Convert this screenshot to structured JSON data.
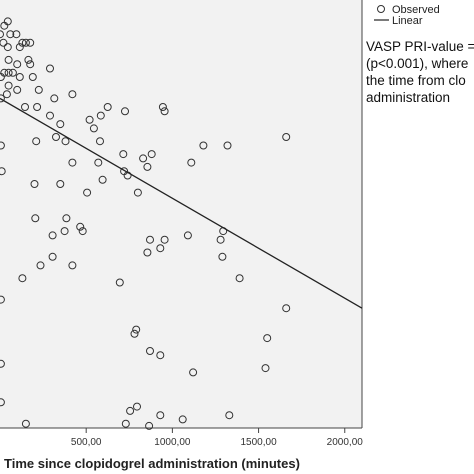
{
  "chart_data": {
    "type": "scatter",
    "xlabel": "Time since clopidogrel administration (minutes)",
    "ylabel": "",
    "xlim": [
      0,
      2100
    ],
    "ylim": [
      0,
      100
    ],
    "x_ticks": [
      "500,00",
      "1000,00",
      "1500,00",
      "2000,00"
    ],
    "x_tick_values": [
      500,
      1000,
      1500,
      2000
    ],
    "plot_background": "#f2f2f2",
    "grid": false,
    "legend": {
      "placement": "top-right",
      "entries": [
        "Observed",
        "Linear"
      ]
    },
    "series": [
      {
        "name": "Observed",
        "marker": "open-circle",
        "points": [
          [
            0,
            92
          ],
          [
            25,
            94
          ],
          [
            45,
            95
          ],
          [
            60,
            92
          ],
          [
            95,
            92
          ],
          [
            20,
            90
          ],
          [
            45,
            89
          ],
          [
            115,
            89
          ],
          [
            130,
            90
          ],
          [
            150,
            90
          ],
          [
            175,
            90
          ],
          [
            50,
            86
          ],
          [
            100,
            85
          ],
          [
            165,
            86
          ],
          [
            175,
            85
          ],
          [
            5,
            82
          ],
          [
            25,
            83
          ],
          [
            50,
            83
          ],
          [
            75,
            83
          ],
          [
            115,
            82
          ],
          [
            190,
            82
          ],
          [
            290,
            84
          ],
          [
            50,
            80
          ],
          [
            100,
            79
          ],
          [
            5,
            77
          ],
          [
            40,
            78
          ],
          [
            225,
            79
          ],
          [
            315,
            77
          ],
          [
            420,
            78
          ],
          [
            145,
            75
          ],
          [
            215,
            75
          ],
          [
            290,
            73
          ],
          [
            350,
            71
          ],
          [
            520,
            72
          ],
          [
            545,
            70
          ],
          [
            625,
            75
          ],
          [
            585,
            73
          ],
          [
            725,
            74
          ],
          [
            945,
            75
          ],
          [
            955,
            74
          ],
          [
            5,
            66
          ],
          [
            325,
            68
          ],
          [
            210,
            67
          ],
          [
            380,
            67
          ],
          [
            420,
            62
          ],
          [
            570,
            62
          ],
          [
            580,
            67
          ],
          [
            715,
            64
          ],
          [
            720,
            60
          ],
          [
            740,
            59
          ],
          [
            830,
            63
          ],
          [
            880,
            64
          ],
          [
            1180,
            66
          ],
          [
            1320,
            66
          ],
          [
            1660,
            68
          ],
          [
            10,
            60
          ],
          [
            200,
            57
          ],
          [
            350,
            57
          ],
          [
            595,
            58
          ],
          [
            855,
            61
          ],
          [
            1110,
            62
          ],
          [
            505,
            55
          ],
          [
            800,
            55
          ],
          [
            205,
            49
          ],
          [
            385,
            49
          ],
          [
            465,
            47
          ],
          [
            1295,
            46
          ],
          [
            305,
            45
          ],
          [
            375,
            46
          ],
          [
            480,
            46
          ],
          [
            870,
            44
          ],
          [
            955,
            44
          ],
          [
            1090,
            45
          ],
          [
            1280,
            44
          ],
          [
            235,
            38
          ],
          [
            305,
            40
          ],
          [
            1290,
            40
          ],
          [
            130,
            35
          ],
          [
            420,
            38
          ],
          [
            855,
            41
          ],
          [
            1390,
            35
          ],
          [
            695,
            34
          ],
          [
            930,
            42
          ],
          [
            5,
            30
          ],
          [
            1660,
            28
          ],
          [
            790,
            23
          ],
          [
            780,
            22
          ],
          [
            1550,
            21
          ],
          [
            870,
            18
          ],
          [
            5,
            15
          ],
          [
            930,
            17
          ],
          [
            1540,
            14
          ],
          [
            1120,
            13
          ],
          [
            795,
            5
          ],
          [
            5,
            6
          ],
          [
            755,
            4
          ],
          [
            930,
            3
          ],
          [
            1330,
            3
          ],
          [
            150,
            1
          ],
          [
            730,
            1
          ],
          [
            1060,
            2
          ],
          [
            865,
            0.5
          ]
        ]
      },
      {
        "name": "Linear",
        "line": {
          "x": [
            0,
            2100
          ],
          "y": [
            77,
            28
          ]
        }
      }
    ]
  },
  "note_lines": [
    "VASP PRI-value =",
    "(p<0.001), where",
    "the time from clo",
    "administration"
  ]
}
